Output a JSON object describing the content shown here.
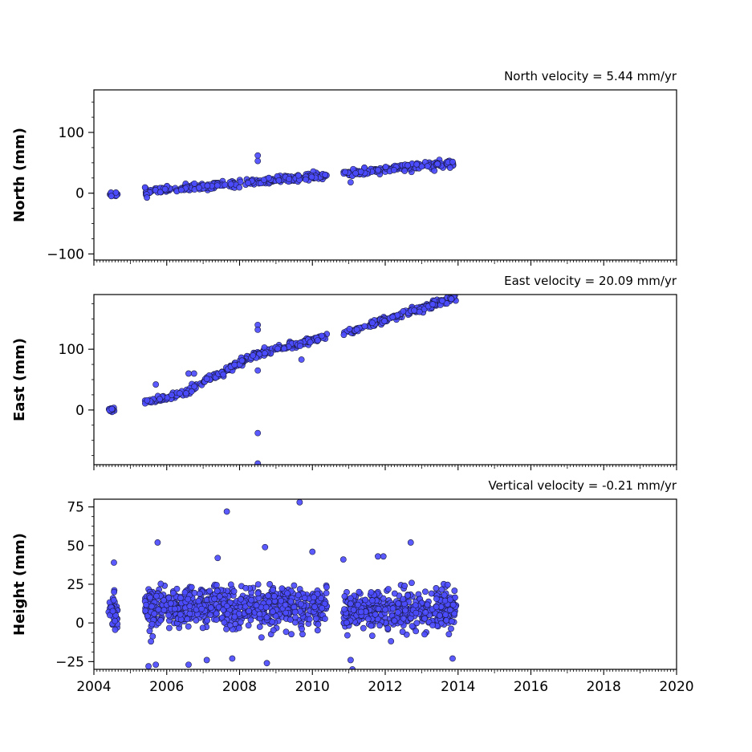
{
  "chart_data": [
    {
      "type": "scatter",
      "id": "north",
      "title": "North velocity = 5.44 mm/yr",
      "ylabel": "North (mm)",
      "xlim": [
        2004,
        2020
      ],
      "ylim": [
        -110,
        170
      ],
      "yticks": [
        -100,
        0,
        100
      ],
      "marker_color": "#4c4cff",
      "segments": [
        {
          "x_start": 2004.4,
          "x_end": 2004.65,
          "y_start": -2,
          "y_end": -1,
          "spread": 4,
          "n": 12
        },
        {
          "x_start": 2005.4,
          "x_end": 2010.4,
          "y_start": 2,
          "y_end": 30,
          "spread": 5,
          "n": 260
        },
        {
          "x_start": 2010.85,
          "x_end": 2013.95,
          "y_start": 32,
          "y_end": 50,
          "spread": 5,
          "n": 170
        }
      ],
      "outliers": [
        {
          "x": 2008.5,
          "y": 62
        },
        {
          "x": 2008.5,
          "y": 53
        },
        {
          "x": 2011.05,
          "y": 18
        },
        {
          "x": 2013.35,
          "y": 37
        }
      ]
    },
    {
      "type": "scatter",
      "id": "east",
      "title": "East velocity = 20.09 mm/yr",
      "ylabel": "East (mm)",
      "xlim": [
        2004,
        2020
      ],
      "ylim": [
        -90,
        190
      ],
      "yticks": [
        0,
        100
      ],
      "marker_color": "#4c4cff",
      "segments": [
        {
          "x_start": 2004.4,
          "x_end": 2004.65,
          "y_start": 0,
          "y_end": 2,
          "spread": 4,
          "n": 12
        },
        {
          "x_start": 2005.4,
          "x_end": 2006.5,
          "y_start": 12,
          "y_end": 28,
          "spread": 5,
          "n": 60
        },
        {
          "x_start": 2006.5,
          "x_end": 2008.3,
          "y_start": 28,
          "y_end": 88,
          "spread": 5,
          "n": 110
        },
        {
          "x_start": 2008.3,
          "x_end": 2010.4,
          "y_start": 88,
          "y_end": 122,
          "spread": 5,
          "n": 120
        },
        {
          "x_start": 2010.85,
          "x_end": 2013.95,
          "y_start": 126,
          "y_end": 186,
          "spread": 5,
          "n": 170
        }
      ],
      "outliers": [
        {
          "x": 2008.5,
          "y": 140
        },
        {
          "x": 2008.5,
          "y": 132
        },
        {
          "x": 2008.5,
          "y": 65
        },
        {
          "x": 2008.5,
          "y": -38
        },
        {
          "x": 2008.5,
          "y": -88
        },
        {
          "x": 2005.7,
          "y": 42
        },
        {
          "x": 2006.6,
          "y": 60
        },
        {
          "x": 2006.75,
          "y": 60
        },
        {
          "x": 2009.7,
          "y": 83
        }
      ]
    },
    {
      "type": "scatter",
      "id": "height",
      "title": "Vertical velocity = -0.21 mm/yr",
      "ylabel": "Height (mm)",
      "xlabel": "",
      "xlim": [
        2004,
        2020
      ],
      "ylim": [
        -30,
        80
      ],
      "yticks": [
        -25,
        0,
        25,
        50,
        75
      ],
      "xticks": [
        2004,
        2006,
        2008,
        2010,
        2012,
        2014,
        2016,
        2018,
        2020
      ],
      "marker_color": "#4c4cff",
      "segments": [
        {
          "x_start": 2004.4,
          "x_end": 2004.65,
          "y_start": 8,
          "y_end": 8,
          "spread": 10,
          "n": 40
        },
        {
          "x_start": 2005.4,
          "x_end": 2010.4,
          "y_start": 10,
          "y_end": 10,
          "spread": 12,
          "n": 650
        },
        {
          "x_start": 2010.85,
          "x_end": 2013.95,
          "y_start": 8,
          "y_end": 8,
          "spread": 12,
          "n": 420
        }
      ],
      "outliers": [
        {
          "x": 2009.65,
          "y": 78
        },
        {
          "x": 2007.65,
          "y": 72
        },
        {
          "x": 2005.75,
          "y": 52
        },
        {
          "x": 2012.7,
          "y": 52
        },
        {
          "x": 2008.7,
          "y": 49
        },
        {
          "x": 2010,
          "y": 46
        },
        {
          "x": 2011.8,
          "y": 43
        },
        {
          "x": 2011.95,
          "y": 43
        },
        {
          "x": 2007.4,
          "y": 42
        },
        {
          "x": 2010.85,
          "y": 41
        },
        {
          "x": 2004.55,
          "y": 39
        },
        {
          "x": 2005.5,
          "y": -28
        },
        {
          "x": 2005.7,
          "y": -27
        },
        {
          "x": 2006.6,
          "y": -27
        },
        {
          "x": 2008.75,
          "y": -26
        },
        {
          "x": 2011.1,
          "y": -30
        },
        {
          "x": 2007.8,
          "y": -23
        },
        {
          "x": 2007.1,
          "y": -24
        },
        {
          "x": 2013.85,
          "y": -23
        },
        {
          "x": 2011.05,
          "y": -24
        }
      ]
    }
  ]
}
